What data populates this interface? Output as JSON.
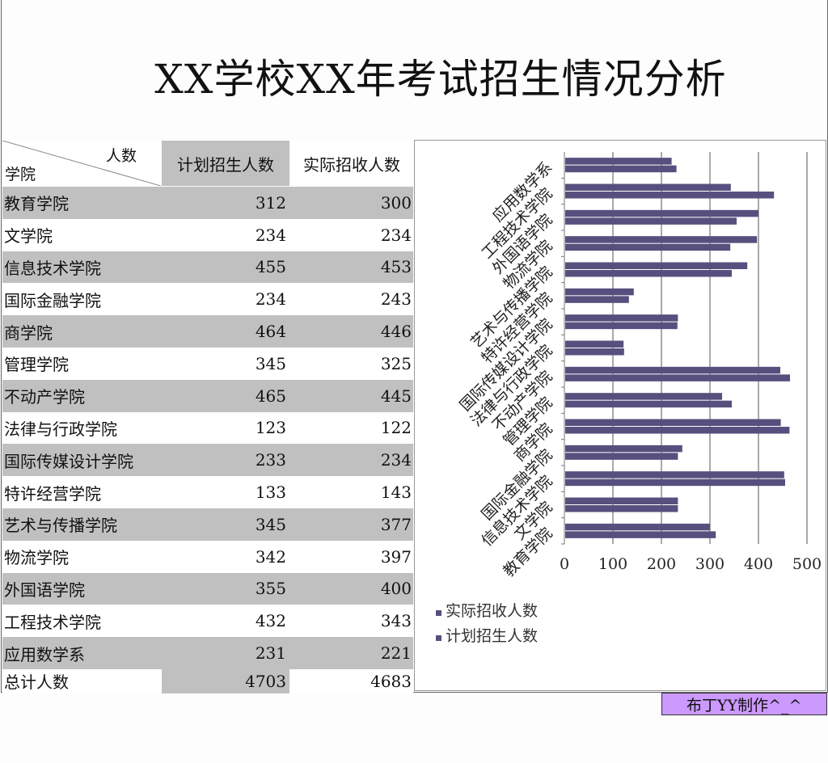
{
  "title": "XX学校XX年考试招生情况分析",
  "table": {
    "corner_top": "人数",
    "corner_bottom": "学院",
    "col_plan": "计划招生人数",
    "col_actual": "实际招收人数",
    "rows": [
      {
        "name": "教育学院",
        "plan": "312",
        "actual": "300"
      },
      {
        "name": "文学院",
        "plan": "234",
        "actual": "234"
      },
      {
        "name": "信息技术学院",
        "plan": "455",
        "actual": "453"
      },
      {
        "name": "国际金融学院",
        "plan": "234",
        "actual": "243"
      },
      {
        "name": "商学院",
        "plan": "464",
        "actual": "446"
      },
      {
        "name": "管理学院",
        "plan": "345",
        "actual": "325"
      },
      {
        "name": "不动产学院",
        "plan": "465",
        "actual": "445"
      },
      {
        "name": "法律与行政学院",
        "plan": "123",
        "actual": "122"
      },
      {
        "name": "国际传媒设计学院",
        "plan": "233",
        "actual": "234"
      },
      {
        "name": "特许经营学院",
        "plan": "133",
        "actual": "143"
      },
      {
        "name": "艺术与传播学院",
        "plan": "345",
        "actual": "377"
      },
      {
        "name": "物流学院",
        "plan": "342",
        "actual": "397"
      },
      {
        "name": "外国语学院",
        "plan": "355",
        "actual": "400"
      },
      {
        "name": "工程技术学院",
        "plan": "432",
        "actual": "343"
      },
      {
        "name": "应用数学系",
        "plan": "231",
        "actual": "221"
      }
    ],
    "total": {
      "name": "总计人数",
      "plan": "4703",
      "actual": "4683"
    }
  },
  "chart_data": {
    "type": "bar",
    "orientation": "horizontal",
    "categories": [
      "教育学院",
      "文学院",
      "信息技术学院",
      "国际金融学院",
      "商学院",
      "管理学院",
      "不动产学院",
      "法律与行政学院",
      "国际传媒设计学院",
      "特许经营学院",
      "艺术与传播学院",
      "物流学院",
      "外国语学院",
      "工程技术学院",
      "应用数学系"
    ],
    "series": [
      {
        "name": "实际招收人数",
        "values": [
          300,
          234,
          453,
          243,
          446,
          325,
          445,
          122,
          234,
          143,
          377,
          397,
          400,
          343,
          221
        ],
        "color": "#57507e"
      },
      {
        "name": "计划招生人数",
        "values": [
          312,
          234,
          455,
          234,
          464,
          345,
          465,
          123,
          233,
          133,
          345,
          342,
          355,
          432,
          231
        ],
        "color": "#57507e"
      }
    ],
    "xlim": [
      0,
      500
    ],
    "ticks": [
      "0",
      "100",
      "200",
      "300",
      "400",
      "500"
    ],
    "grid": true,
    "legend_position": "bottom-left"
  },
  "footer": {
    "credit": "布丁YY制作^_^"
  }
}
